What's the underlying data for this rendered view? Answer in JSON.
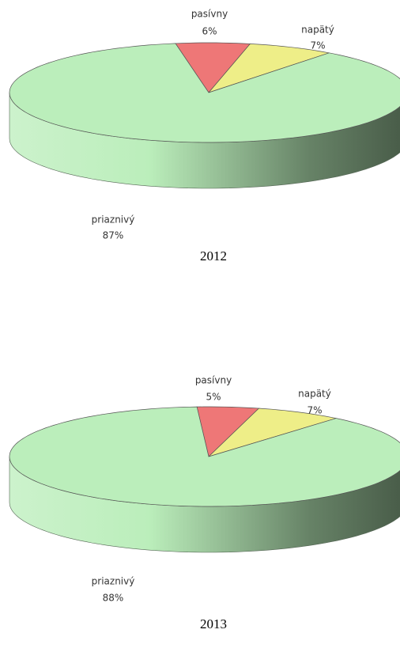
{
  "chart_data": [
    {
      "type": "pie",
      "title": "2012",
      "categories": [
        "pasívny",
        "napätý",
        "priaznivý"
      ],
      "values": [
        6,
        7,
        87
      ],
      "value_labels": [
        "6%",
        "7%",
        "87%"
      ],
      "colors": [
        "#ee7777",
        "#eeee88",
        "#bbeebb"
      ]
    },
    {
      "type": "pie",
      "title": "2013",
      "categories": [
        "pasívny",
        "napätý",
        "priaznivý"
      ],
      "values": [
        5,
        7,
        88
      ],
      "value_labels": [
        "5%",
        "7%",
        "88%"
      ],
      "colors": [
        "#ee7777",
        "#eeee88",
        "#bbeebb"
      ]
    }
  ]
}
